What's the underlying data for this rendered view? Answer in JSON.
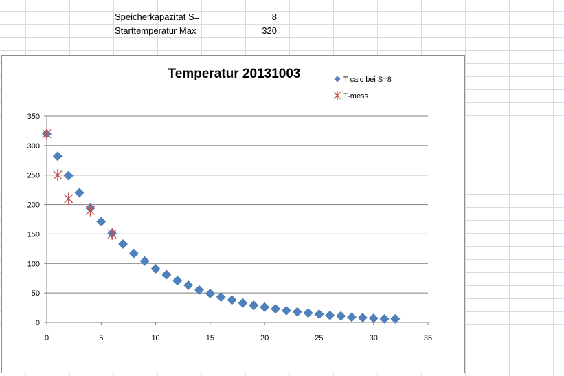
{
  "sheet": {
    "params": [
      {
        "label": "Speicherkapazität S=",
        "value": "8"
      },
      {
        "label": "Starttemperatur Max=",
        "value": "320"
      }
    ]
  },
  "colors": {
    "calc": "#4f81bd",
    "mess": "#c0504d",
    "gridline": "#7f7f7f"
  },
  "chart_data": {
    "type": "scatter",
    "title": "Temperatur 20131003",
    "xlabel": "",
    "ylabel": "",
    "xlim": [
      0,
      35
    ],
    "ylim": [
      0,
      350
    ],
    "x_ticks": [
      0,
      5,
      10,
      15,
      20,
      25,
      30,
      35
    ],
    "y_ticks": [
      0,
      50,
      100,
      150,
      200,
      250,
      300,
      350
    ],
    "legend_position": "top-right",
    "series": [
      {
        "name": "T calc bei S=8",
        "marker": "diamond",
        "x": [
          0,
          1,
          2,
          3,
          4,
          5,
          6,
          7,
          8,
          9,
          10,
          11,
          12,
          13,
          14,
          15,
          16,
          17,
          18,
          19,
          20,
          21,
          22,
          23,
          24,
          25,
          26,
          27,
          28,
          29,
          30,
          31,
          32
        ],
        "y": [
          320,
          282,
          249,
          220,
          194,
          171,
          151,
          133,
          117,
          104,
          91,
          81,
          71,
          63,
          55,
          49,
          43,
          38,
          33,
          29,
          26,
          23,
          20,
          18,
          16,
          14,
          12,
          11,
          9,
          8,
          7,
          6,
          6
        ]
      },
      {
        "name": "T-mess",
        "marker": "asterisk",
        "x": [
          0,
          1,
          2,
          4,
          6
        ],
        "y": [
          320,
          250,
          210,
          190,
          150
        ]
      }
    ]
  }
}
